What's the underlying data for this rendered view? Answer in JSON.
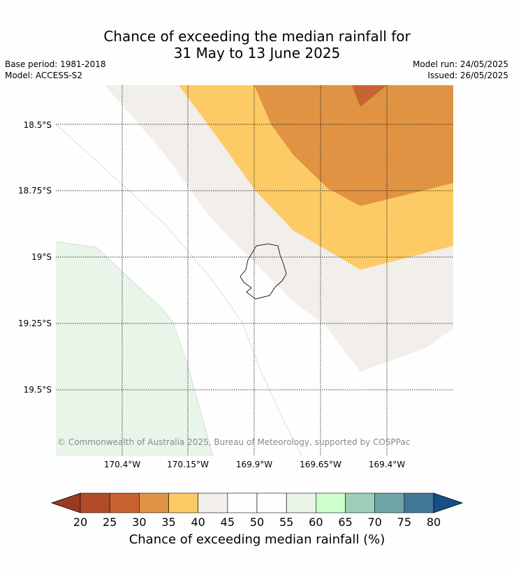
{
  "title_line1": "Chance of exceeding the median rainfall for",
  "title_line2": "31 May to 13 June 2025",
  "base_period": "Base period: 1981-2018",
  "model": "Model: ACCESS-S2",
  "model_run": "Model run: 24/05/2025",
  "issued": "Issued: 26/05/2025",
  "lat_labels": [
    "18.5°S",
    "18.75°S",
    "19°S",
    "19.25°S",
    "19.5°S"
  ],
  "lon_labels": [
    "170.4°W",
    "170.15°W",
    "169.9°W",
    "169.65°W",
    "169.4°W"
  ],
  "copyright": "© Commonwealth of Australia 2025, Bureau of Meteorology, supported by COSPPac",
  "colorbar": {
    "label": "Chance of exceeding median rainfall (%)",
    "ticks": [
      "20",
      "25",
      "30",
      "35",
      "40",
      "45",
      "50",
      "55",
      "60",
      "65",
      "70",
      "75",
      "80"
    ],
    "colors": [
      "#b14b28",
      "#c9632f",
      "#e09343",
      "#fdcb66",
      "#f2eee9",
      "#fefefe",
      "#fefefe",
      "#eaf5ea",
      "#ccffcc",
      "#9dcfb9",
      "#6fa4a8",
      "#417799"
    ],
    "under_color": "#9a3a22",
    "over_color": "#154f87"
  },
  "regions_colors": {
    "neutral": "#f2eee9",
    "c35_40": "#fdcb66",
    "c30_35": "#e09343",
    "c25_30": "#c9632f",
    "c55_60": "#eaf5ea"
  }
}
